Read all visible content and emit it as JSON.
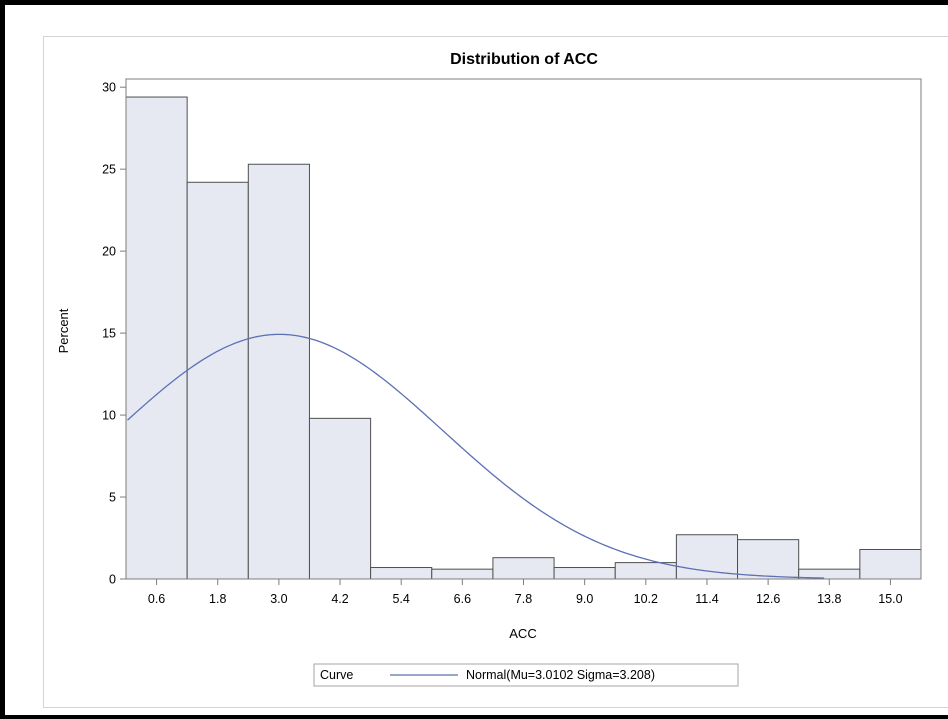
{
  "chart_data": {
    "type": "bar",
    "title": "Distribution of ACC",
    "xlabel": "ACC",
    "ylabel": "Percent",
    "categories": [
      "0.6",
      "1.8",
      "3.0",
      "4.2",
      "5.4",
      "6.6",
      "7.8",
      "9.0",
      "10.2",
      "11.4",
      "12.6",
      "13.8",
      "15.0"
    ],
    "x": [
      0.6,
      1.8,
      3.0,
      4.2,
      5.4,
      6.6,
      7.8,
      9.0,
      10.2,
      11.4,
      12.6,
      13.8,
      15.0
    ],
    "bin_width": 1.2,
    "values": [
      29.4,
      24.2,
      25.3,
      9.8,
      0.7,
      0.6,
      1.3,
      0.7,
      1.0,
      2.7,
      2.4,
      0.6,
      1.8
    ],
    "y_ticks": [
      0,
      5,
      10,
      15,
      20,
      25,
      30
    ],
    "y_tick_labels": [
      "0",
      "5",
      "10",
      "15",
      "20",
      "25",
      "30"
    ],
    "ylim": [
      0,
      30.5
    ],
    "xlim": [
      0.0,
      15.6
    ],
    "grid": false,
    "legend": {
      "position": "bottom",
      "title": "Curve",
      "entries": [
        "Normal(Mu=3.0102 Sigma=3.208)"
      ]
    },
    "curve": {
      "name": "Normal(Mu=3.0102 Sigma=3.208)",
      "mu": 3.0102,
      "sigma": 3.208,
      "bin_width": 1.2
    },
    "colors": {
      "bar_fill": "#e6e9f1",
      "bar_stroke": "#4f4f4f",
      "curve": "#5d6fb5",
      "axis": "#7c7c7c",
      "panel_border": "#d4d4d4"
    }
  }
}
